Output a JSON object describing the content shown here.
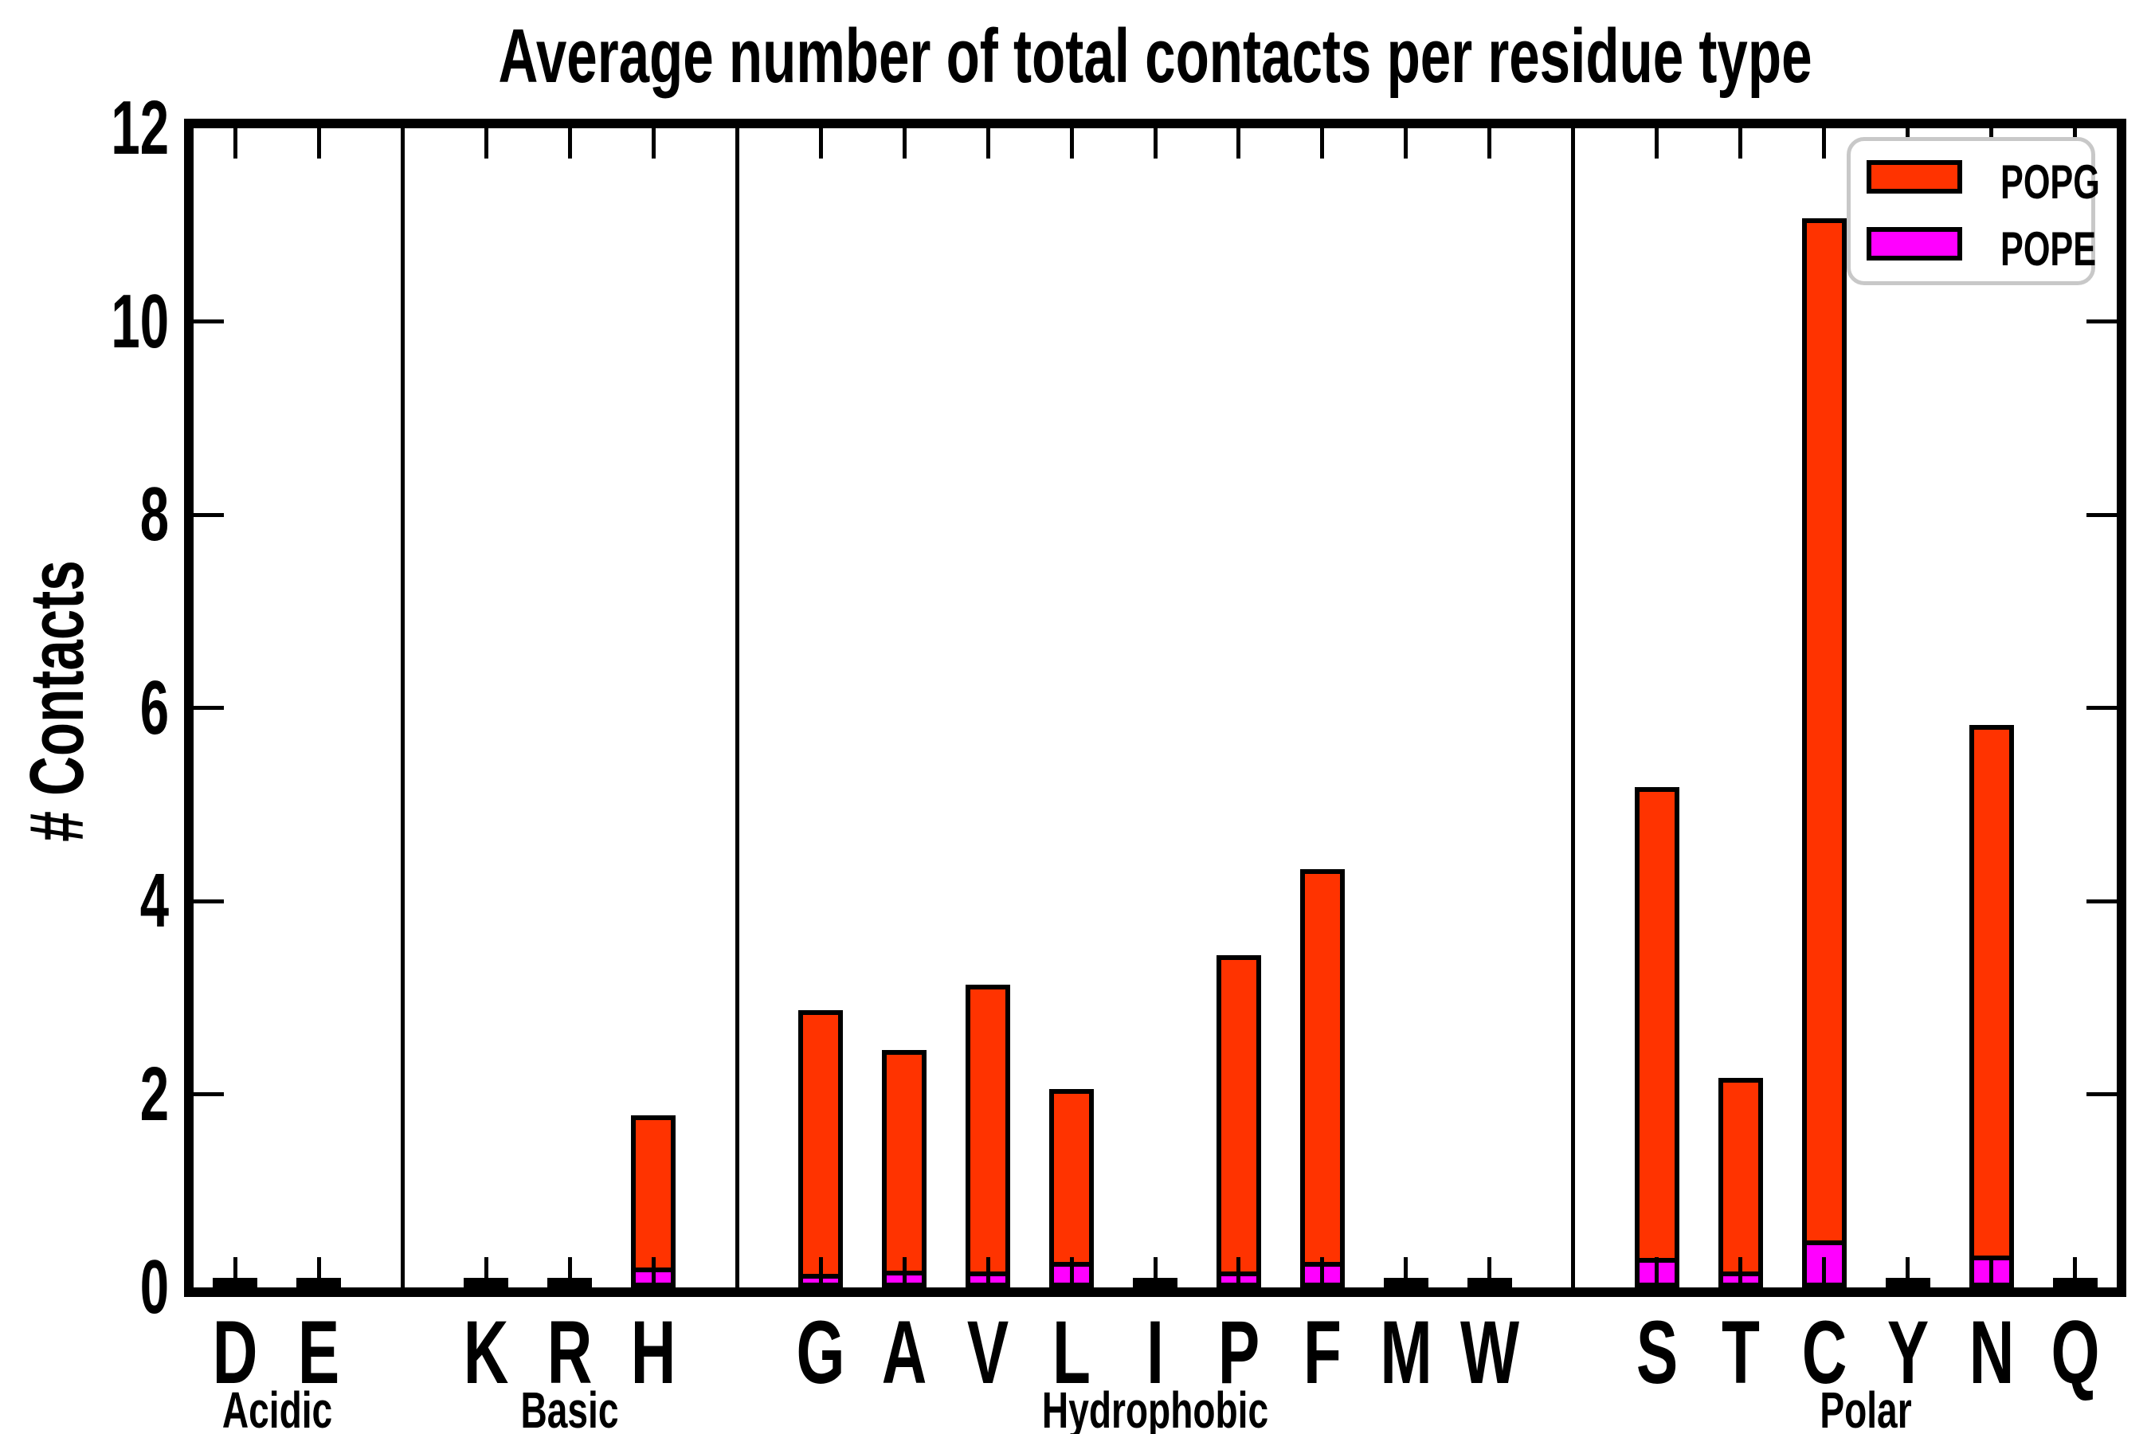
{
  "chart_data": {
    "type": "bar",
    "stacked": true,
    "title": "Average number of total contacts per residue type",
    "xlabel": "",
    "ylabel": "# Contacts",
    "ylim": [
      0,
      12
    ],
    "yticks": [
      0,
      2,
      4,
      6,
      8,
      10,
      12
    ],
    "grid": false,
    "legend_position": "upper right",
    "legend": [
      {
        "label": "POPG",
        "color": "#ff3300"
      },
      {
        "label": "POPE",
        "color": "#ff00ff"
      }
    ],
    "categories": [
      "D",
      "E",
      "K",
      "R",
      "H",
      "G",
      "A",
      "V",
      "L",
      "I",
      "P",
      "F",
      "M",
      "W",
      "S",
      "T",
      "C",
      "Y",
      "N",
      "Q"
    ],
    "groups": [
      {
        "label": "Acidic",
        "residues": [
          "D",
          "E"
        ]
      },
      {
        "label": "Basic",
        "residues": [
          "K",
          "R",
          "H"
        ]
      },
      {
        "label": "Hydrophobic",
        "residues": [
          "G",
          "A",
          "V",
          "L",
          "I",
          "P",
          "F",
          "M",
          "W"
        ]
      },
      {
        "label": "Polar",
        "residues": [
          "S",
          "T",
          "C",
          "Y",
          "N",
          "Q"
        ]
      }
    ],
    "series": [
      {
        "name": "POPG",
        "color": "#ff3300",
        "stack_order": "top",
        "values": [
          0.02,
          0.02,
          0.02,
          0.02,
          1.66,
          2.81,
          2.37,
          3.05,
          1.87,
          0.02,
          3.36,
          4.15,
          0.02,
          0.02,
          4.96,
          2.09,
          10.67,
          0.02,
          5.57,
          0.02
        ]
      },
      {
        "name": "POPE",
        "color": "#ff00ff",
        "stack_order": "bottom",
        "values": [
          0,
          0,
          0,
          0,
          0.12,
          0.06,
          0.09,
          0.08,
          0.18,
          0,
          0.08,
          0.18,
          0,
          0,
          0.22,
          0.08,
          0.4,
          0,
          0.25,
          0
        ]
      }
    ],
    "totals": [
      0.02,
      0.02,
      0.02,
      0.02,
      1.78,
      2.87,
      2.46,
      3.13,
      2.05,
      0.02,
      3.44,
      4.33,
      0.02,
      0.02,
      5.18,
      2.17,
      11.07,
      0.02,
      5.82,
      0.02
    ]
  },
  "colors": {
    "popg": "#ff3300",
    "pope": "#ff00ff",
    "axis": "#000000",
    "legend_border": "#c8c8c8",
    "background": "#ffffff"
  }
}
